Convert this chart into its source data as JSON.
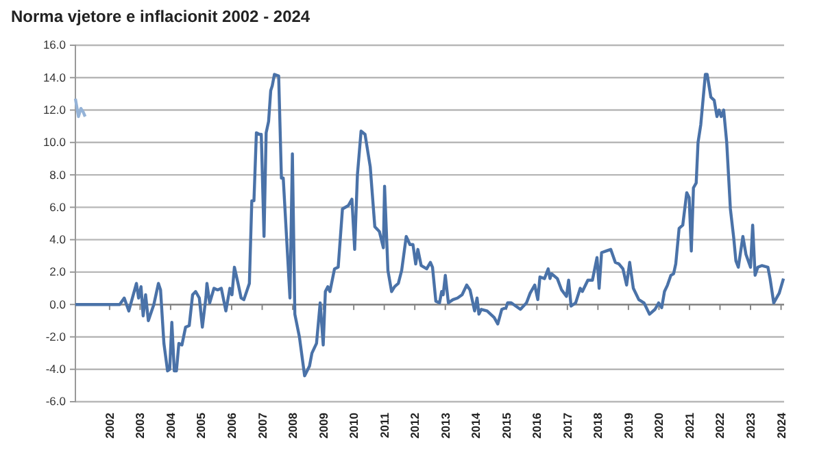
{
  "chart_data": {
    "type": "line",
    "title": "Norma vjetore e inflacionit 2002 - 2024",
    "xlim": [
      2000.88,
      2024.1
    ],
    "xticks": [
      2002,
      2003,
      2004,
      2005,
      2006,
      2007,
      2008,
      2009,
      2010,
      2011,
      2012,
      2013,
      2014,
      2015,
      2016,
      2017,
      2018,
      2019,
      2020,
      2021,
      2022,
      2023,
      2024
    ],
    "ylim": [
      -6,
      16
    ],
    "yticks": [
      {
        "value": -6,
        "label": "-6.0"
      },
      {
        "value": -4,
        "label": "-4.0"
      },
      {
        "value": -2,
        "label": "-2.0"
      },
      {
        "value": 0,
        "label": "0.0"
      },
      {
        "value": 2,
        "label": "2.0"
      },
      {
        "value": 4,
        "label": "4.0"
      },
      {
        "value": 6,
        "label": "6.0"
      },
      {
        "value": 8,
        "label": "8.0"
      },
      {
        "value": 10,
        "label": "10.0"
      },
      {
        "value": 12,
        "label": "12.0"
      },
      {
        "value": 14,
        "label": "14.0"
      },
      {
        "value": 16,
        "label": "16.0"
      }
    ],
    "grid": "y",
    "ref_lines": [
      {
        "axis": "y",
        "value": 0,
        "color": "#888888"
      }
    ],
    "marker": "none",
    "line_style": "solid",
    "series": [
      {
        "color": "#4a72a8",
        "x": [
          2000.88,
          2002.33,
          2002.48,
          2002.63,
          2002.88,
          2002.95,
          2003.03,
          2003.1,
          2003.18,
          2003.27,
          2003.45,
          2003.6,
          2003.67,
          2003.78,
          2003.9,
          2003.97,
          2004.04,
          2004.12,
          2004.19,
          2004.27,
          2004.37,
          2004.49,
          2004.61,
          2004.72,
          2004.82,
          2004.94,
          2005.04,
          2005.16,
          2005.19,
          2005.28,
          2005.42,
          2005.54,
          2005.66,
          2005.81,
          2005.94,
          2006.01,
          2006.09,
          2006.21,
          2006.31,
          2006.4,
          2006.58,
          2006.66,
          2006.73,
          2006.81,
          2006.91,
          2006.97,
          2007.06,
          2007.13,
          2007.21,
          2007.28,
          2007.33,
          2007.4,
          2007.54,
          2007.63,
          2007.69,
          2007.91,
          2007.99,
          2008.07,
          2008.22,
          2008.39,
          2008.55,
          2008.63,
          2008.78,
          2008.9,
          2009.0,
          2009.07,
          2009.15,
          2009.22,
          2009.37,
          2009.49,
          2009.63,
          2009.82,
          2009.94,
          2010.03,
          2010.12,
          2010.24,
          2010.37,
          2010.54,
          2010.69,
          2010.84,
          2010.97,
          2011.01,
          2011.12,
          2011.24,
          2011.34,
          2011.46,
          2011.57,
          2011.72,
          2011.84,
          2011.94,
          2012.03,
          2012.1,
          2012.21,
          2012.39,
          2012.51,
          2012.58,
          2012.69,
          2012.81,
          2012.88,
          2012.93,
          2013.0,
          2013.1,
          2013.25,
          2013.4,
          2013.55,
          2013.7,
          2013.81,
          2013.96,
          2014.04,
          2014.1,
          2014.18,
          2014.37,
          2014.6,
          2014.72,
          2014.85,
          2014.99,
          2015.04,
          2015.16,
          2015.46,
          2015.66,
          2015.78,
          2015.93,
          2016.03,
          2016.1,
          2016.25,
          2016.37,
          2016.43,
          2016.48,
          2016.67,
          2016.81,
          2016.97,
          2017.04,
          2017.12,
          2017.27,
          2017.42,
          2017.49,
          2017.67,
          2017.82,
          2017.97,
          2018.04,
          2018.12,
          2018.27,
          2018.42,
          2018.57,
          2018.69,
          2018.82,
          2018.94,
          2019.04,
          2019.16,
          2019.34,
          2019.51,
          2019.69,
          2019.87,
          2019.99,
          2020.09,
          2020.18,
          2020.28,
          2020.39,
          2020.48,
          2020.55,
          2020.66,
          2020.78,
          2020.91,
          2020.99,
          2021.06,
          2021.13,
          2021.22,
          2021.28,
          2021.37,
          2021.52,
          2021.58,
          2021.7,
          2021.81,
          2021.9,
          2021.97,
          2022.04,
          2022.12,
          2022.22,
          2022.34,
          2022.45,
          2022.52,
          2022.6,
          2022.75,
          2022.85,
          2023.0,
          2023.07,
          2023.15,
          2023.24,
          2023.37,
          2023.57,
          2023.64,
          2023.76,
          2023.94,
          2024.08
        ],
        "values": [
          0,
          0,
          0.4,
          -0.4,
          1.3,
          0.4,
          1.1,
          -0.7,
          0.6,
          -1.0,
          0,
          1.3,
          0.9,
          -2.4,
          -4.1,
          -4.0,
          -1.1,
          -4.1,
          -4.1,
          -2.4,
          -2.5,
          -1.4,
          -1.3,
          0.6,
          0.8,
          0.4,
          -1.4,
          0.5,
          1.3,
          0.1,
          1.0,
          0.9,
          1.0,
          -0.4,
          1.0,
          0.6,
          2.3,
          1.3,
          0.4,
          0.3,
          1.3,
          6.4,
          6.4,
          10.6,
          10.5,
          10.5,
          4.2,
          10.6,
          11.3,
          13.2,
          13.5,
          14.2,
          14.1,
          7.8,
          7.8,
          0.4,
          9.3,
          -0.6,
          -2.0,
          -4.4,
          -3.8,
          -3.0,
          -2.4,
          0.1,
          -2.5,
          0.8,
          1.1,
          0.8,
          2.2,
          2.3,
          5.9,
          6.1,
          6.5,
          3.4,
          8.0,
          10.7,
          10.5,
          8.5,
          4.8,
          4.5,
          3.5,
          7.3,
          2.1,
          0.8,
          1.1,
          1.3,
          2.1,
          4.2,
          3.7,
          3.7,
          2.5,
          3.4,
          2.4,
          2.2,
          2.6,
          2.3,
          0.2,
          0.1,
          0.8,
          0.6,
          1.8,
          0.1,
          0.3,
          0.4,
          0.6,
          1.2,
          0.9,
          -0.4,
          0.4,
          -0.6,
          -0.3,
          -0.4,
          -0.8,
          -1.2,
          -0.3,
          -0.2,
          0.1,
          0.1,
          -0.3,
          0.1,
          0.7,
          1.2,
          0.3,
          1.7,
          1.6,
          2.2,
          1.6,
          1.9,
          1.6,
          0.9,
          0.5,
          1.5,
          -0.1,
          0.1,
          1.0,
          0.8,
          1.5,
          1.5,
          2.9,
          1.0,
          3.2,
          3.3,
          3.4,
          2.6,
          2.5,
          2.2,
          1.2,
          2.6,
          1.0,
          0.3,
          0.1,
          -0.6,
          -0.3,
          0.1,
          -0.2,
          0.8,
          1.2,
          1.8,
          1.9,
          2.5,
          4.7,
          4.9,
          6.9,
          6.6,
          3.3,
          7.2,
          7.5,
          10.0,
          11.1,
          14.2,
          14.2,
          12.8,
          12.6,
          11.6,
          12.0,
          11.6,
          12.0,
          10.0,
          5.9,
          4.1,
          2.7,
          2.3,
          4.2,
          3.1,
          2.3,
          4.9,
          1.8,
          2.3,
          2.4,
          2.3,
          1.6,
          0.1,
          0.7,
          1.6
        ]
      },
      {
        "color": "#95b3d7",
        "x": [
          2000.88,
          2000.98,
          2001.06,
          2001.13,
          2001.2
        ],
        "values": [
          12.7,
          11.6,
          12.1,
          11.9,
          11.6
        ]
      }
    ]
  }
}
